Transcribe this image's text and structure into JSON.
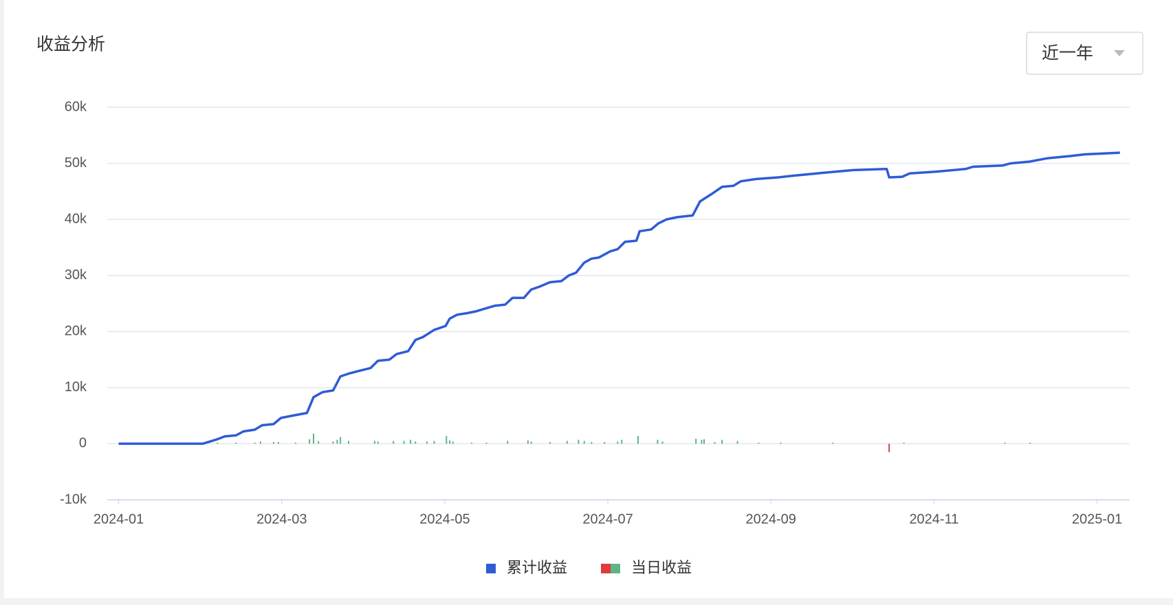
{
  "chart_data": {
    "type": "line",
    "title": "收益分析",
    "range_selector": "近一年",
    "xlim": [
      -0.14,
      12.4
    ],
    "xticks": [
      {
        "value": 0,
        "label": "2024-01"
      },
      {
        "value": 2,
        "label": "2024-03"
      },
      {
        "value": 4,
        "label": "2024-05"
      },
      {
        "value": 6,
        "label": "2024-07"
      },
      {
        "value": 8,
        "label": "2024-09"
      },
      {
        "value": 10,
        "label": "2024-11"
      },
      {
        "value": 12,
        "label": "2025-01"
      }
    ],
    "ylim": [
      -10000,
      60000
    ],
    "yticks": [
      {
        "value": -10000,
        "label": "-10k"
      },
      0,
      {
        "value": 10000,
        "label": "10k"
      },
      {
        "value": 20000,
        "label": "20k"
      },
      {
        "value": 30000,
        "label": "30k"
      },
      {
        "value": 40000,
        "label": "40k"
      },
      {
        "value": 50000,
        "label": "50k"
      },
      {
        "value": 60000,
        "label": "60k"
      }
    ],
    "grid": true,
    "legend": "bottom",
    "series": [
      {
        "name": "累计收益",
        "type": "line",
        "color": "#2f5bd6",
        "x": [
          0,
          1.03,
          1.21,
          1.3,
          1.44,
          1.53,
          1.67,
          1.76,
          1.9,
          1.99,
          2.13,
          2.31,
          2.39,
          2.5,
          2.63,
          2.72,
          2.82,
          2.95,
          3.09,
          3.18,
          3.32,
          3.41,
          3.55,
          3.64,
          3.73,
          3.87,
          4.01,
          4.06,
          4.15,
          4.28,
          4.38,
          4.47,
          4.61,
          4.74,
          4.83,
          4.97,
          5.06,
          5.16,
          5.29,
          5.43,
          5.52,
          5.61,
          5.71,
          5.8,
          5.89,
          6.03,
          6.12,
          6.21,
          6.35,
          6.39,
          6.53,
          6.62,
          6.72,
          6.85,
          7.04,
          7.13,
          7.27,
          7.4,
          7.54,
          7.63,
          7.82,
          8.09,
          8.28,
          8.64,
          9.01,
          9.42,
          9.45,
          9.61,
          9.7,
          10.02,
          10.39,
          10.48,
          10.84,
          10.94,
          11.17,
          11.39,
          11.67,
          11.85,
          12.28
        ],
        "values": [
          0,
          0,
          800,
          1300,
          1500,
          2200,
          2500,
          3300,
          3500,
          4600,
          5000,
          5500,
          8300,
          9200,
          9500,
          12000,
          12500,
          13000,
          13500,
          14800,
          15000,
          16000,
          16500,
          18500,
          19000,
          20300,
          21000,
          22300,
          23000,
          23300,
          23600,
          24000,
          24600,
          24800,
          26000,
          26000,
          27500,
          28000,
          28800,
          29000,
          30000,
          30500,
          32300,
          33000,
          33200,
          34300,
          34700,
          36000,
          36200,
          37900,
          38200,
          39300,
          40000,
          40400,
          40700,
          43200,
          44500,
          45800,
          46000,
          46800,
          47200,
          47500,
          47800,
          48300,
          48800,
          49000,
          47500,
          47600,
          48200,
          48500,
          49000,
          49400,
          49600,
          50000,
          50300,
          50900,
          51300,
          51600,
          51900
        ]
      },
      {
        "name": "当日收益",
        "type": "bar",
        "color": "#5db585",
        "negative_color": "#e0393e",
        "x": [
          1.21,
          1.44,
          1.67,
          1.74,
          1.9,
          1.96,
          2.17,
          2.34,
          2.39,
          2.45,
          2.63,
          2.68,
          2.72,
          2.82,
          3.14,
          3.18,
          3.37,
          3.5,
          3.58,
          3.64,
          3.78,
          3.87,
          4.02,
          4.06,
          4.1,
          4.33,
          4.51,
          4.77,
          5.02,
          5.06,
          5.29,
          5.5,
          5.64,
          5.71,
          5.8,
          5.96,
          6.12,
          6.17,
          6.37,
          6.61,
          6.67,
          7.08,
          7.15,
          7.18,
          7.31,
          7.4,
          7.59,
          7.85,
          8.12,
          8.76,
          9.45,
          9.63,
          10.87,
          11.18
        ],
        "values": [
          200,
          200,
          200,
          400,
          300,
          300,
          200,
          800,
          1800,
          500,
          400,
          700,
          1200,
          500,
          500,
          400,
          500,
          500,
          700,
          400,
          400,
          500,
          1400,
          600,
          400,
          200,
          200,
          500,
          600,
          400,
          300,
          500,
          700,
          500,
          300,
          300,
          400,
          700,
          1400,
          700,
          400,
          900,
          700,
          800,
          300,
          700,
          500,
          200,
          200,
          200,
          -1500,
          200,
          200,
          200
        ]
      }
    ]
  }
}
